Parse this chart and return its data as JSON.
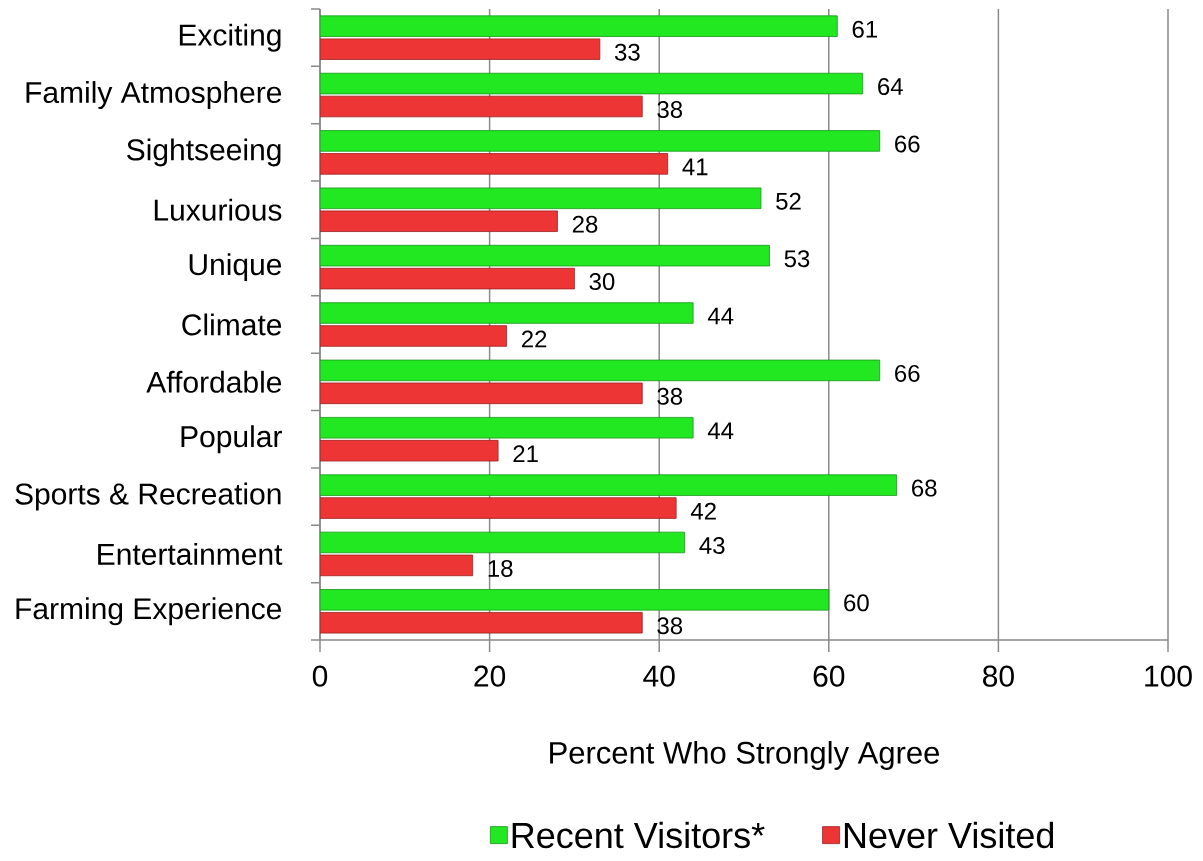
{
  "chart_data": {
    "type": "bar",
    "orientation": "horizontal",
    "categories": [
      "Exciting",
      "Family Atmosphere",
      "Sightseeing",
      "Luxurious",
      "Unique",
      "Climate",
      "Affordable",
      "Popular",
      "Sports & Recreation",
      "Entertainment",
      "Farming Experience"
    ],
    "series": [
      {
        "name": "Recent Visitors*",
        "color": "#22e822",
        "values": [
          61,
          64,
          66,
          52,
          53,
          44,
          66,
          44,
          68,
          43,
          60
        ]
      },
      {
        "name": "Never Visited",
        "color": "#ee3535",
        "values": [
          33,
          38,
          41,
          28,
          30,
          22,
          38,
          21,
          42,
          18,
          38
        ]
      }
    ],
    "xlabel": "Percent Who Strongly Agree",
    "xlim": [
      0,
      100
    ],
    "xticks": [
      0,
      20,
      40,
      60,
      80,
      100
    ],
    "grid": "x",
    "legend": "bottom",
    "data_labels": true
  }
}
